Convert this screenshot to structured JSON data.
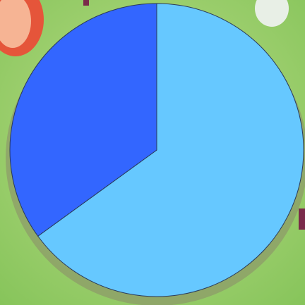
{
  "chart_data": {
    "type": "pie",
    "values": [
      65,
      35
    ],
    "colors": [
      "#66c8ff",
      "#3366ff"
    ]
  }
}
